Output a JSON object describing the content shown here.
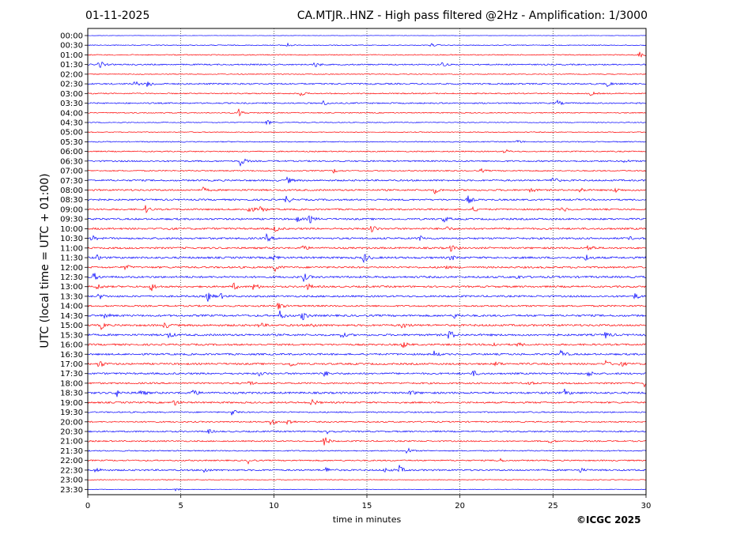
{
  "header": {
    "date": "01-11-2025",
    "title": "CA.MTJR..HNZ - High pass filtered @2Hz - Amplification: 1/3000"
  },
  "footer": {
    "copyright": "©ICGC 2025"
  },
  "chart_data": {
    "type": "line",
    "title": "CA.MTJR..HNZ - High pass filtered @2Hz - Amplification: 1/3000",
    "xlabel": "time in minutes",
    "ylabel": "UTC (local time = UTC + 01:00)",
    "xlim": [
      0,
      30
    ],
    "xticks": [
      0,
      5,
      10,
      15,
      20,
      25,
      30
    ],
    "vertical_gridlines_at": [
      5,
      10,
      15,
      20,
      25
    ],
    "grid": "vertical dotted",
    "trace_colors": [
      "#0000ff",
      "#ff0000"
    ],
    "rows": [
      {
        "label": "00:00",
        "color": "#0000ff",
        "level": 0.2,
        "events": []
      },
      {
        "label": "00:30",
        "color": "#0000ff",
        "level": 0.5,
        "events": [
          [
            10.7,
            3
          ],
          [
            18.4,
            3
          ]
        ]
      },
      {
        "label": "01:00",
        "color": "#ff0000",
        "level": 0.6,
        "events": [
          [
            29.6,
            5
          ]
        ]
      },
      {
        "label": "01:30",
        "color": "#0000ff",
        "level": 0.8,
        "events": [
          [
            0.6,
            6
          ],
          [
            12.2,
            4
          ],
          [
            19.0,
            4
          ]
        ]
      },
      {
        "label": "02:00",
        "color": "#ff0000",
        "level": 0.5,
        "events": []
      },
      {
        "label": "02:30",
        "color": "#0000ff",
        "level": 0.9,
        "events": [
          [
            2.5,
            4
          ],
          [
            3.2,
            6
          ],
          [
            27.9,
            4
          ]
        ]
      },
      {
        "label": "03:00",
        "color": "#ff0000",
        "level": 0.7,
        "events": [
          [
            11.4,
            4
          ],
          [
            27.0,
            3
          ]
        ]
      },
      {
        "label": "03:30",
        "color": "#0000ff",
        "level": 0.8,
        "events": [
          [
            12.6,
            4
          ],
          [
            25.2,
            4
          ]
        ]
      },
      {
        "label": "04:00",
        "color": "#ff0000",
        "level": 0.6,
        "events": [
          [
            8.1,
            6
          ]
        ]
      },
      {
        "label": "04:30",
        "color": "#0000ff",
        "level": 0.5,
        "events": [
          [
            9.6,
            4
          ]
        ]
      },
      {
        "label": "05:00",
        "color": "#ff0000",
        "level": 0.5,
        "events": []
      },
      {
        "label": "05:30",
        "color": "#0000ff",
        "level": 0.6,
        "events": [
          [
            23.0,
            3
          ]
        ]
      },
      {
        "label": "06:00",
        "color": "#ff0000",
        "level": 0.7,
        "events": [
          [
            22.4,
            3
          ]
        ]
      },
      {
        "label": "06:30",
        "color": "#0000ff",
        "level": 0.9,
        "events": [
          [
            8.2,
            7
          ],
          [
            28.8,
            3
          ]
        ]
      },
      {
        "label": "07:00",
        "color": "#ff0000",
        "level": 0.7,
        "events": [
          [
            13.2,
            3
          ],
          [
            21.1,
            3
          ]
        ]
      },
      {
        "label": "07:30",
        "color": "#0000ff",
        "level": 1.0,
        "events": [
          [
            10.7,
            5
          ],
          [
            24.9,
            7
          ]
        ]
      },
      {
        "label": "08:00",
        "color": "#ff0000",
        "level": 1.0,
        "events": [
          [
            6.1,
            5
          ],
          [
            18.6,
            5
          ],
          [
            23.8,
            3
          ],
          [
            26.4,
            4
          ],
          [
            28.3,
            4
          ]
        ]
      },
      {
        "label": "08:30",
        "color": "#0000ff",
        "level": 1.0,
        "events": [
          [
            0.2,
            3
          ],
          [
            10.6,
            7
          ],
          [
            20.4,
            6
          ]
        ]
      },
      {
        "label": "09:00",
        "color": "#ff0000",
        "level": 1.0,
        "events": [
          [
            3.1,
            5
          ],
          [
            8.6,
            7
          ],
          [
            9.3,
            5
          ],
          [
            20.7,
            4
          ],
          [
            25.5,
            4
          ]
        ]
      },
      {
        "label": "09:30",
        "color": "#0000ff",
        "level": 1.1,
        "events": [
          [
            11.2,
            4
          ],
          [
            11.9,
            6
          ],
          [
            19.1,
            5
          ]
        ]
      },
      {
        "label": "10:00",
        "color": "#ff0000",
        "level": 1.1,
        "events": [
          [
            4.2,
            3
          ],
          [
            10.0,
            5
          ],
          [
            15.2,
            7
          ],
          [
            19.2,
            4
          ]
        ]
      },
      {
        "label": "10:30",
        "color": "#0000ff",
        "level": 1.1,
        "events": [
          [
            0.2,
            4
          ],
          [
            9.6,
            5
          ],
          [
            17.8,
            4
          ],
          [
            29.0,
            3
          ]
        ]
      },
      {
        "label": "11:00",
        "color": "#ff0000",
        "level": 1.1,
        "events": [
          [
            11.5,
            5
          ],
          [
            19.5,
            4
          ],
          [
            26.9,
            6
          ]
        ]
      },
      {
        "label": "11:30",
        "color": "#0000ff",
        "level": 1.2,
        "events": [
          [
            0.5,
            3
          ],
          [
            10.0,
            5
          ],
          [
            14.8,
            8
          ],
          [
            19.5,
            4
          ],
          [
            26.7,
            6
          ]
        ]
      },
      {
        "label": "12:00",
        "color": "#ff0000",
        "level": 1.1,
        "events": [
          [
            2.0,
            4
          ],
          [
            10.0,
            6
          ],
          [
            19.1,
            3
          ]
        ]
      },
      {
        "label": "12:30",
        "color": "#0000ff",
        "level": 1.2,
        "events": [
          [
            0.3,
            6
          ],
          [
            11.6,
            5
          ],
          [
            23.0,
            3
          ]
        ]
      },
      {
        "label": "13:00",
        "color": "#ff0000",
        "level": 1.1,
        "events": [
          [
            0.5,
            4
          ],
          [
            3.4,
            6
          ],
          [
            7.8,
            5
          ],
          [
            8.9,
            6
          ],
          [
            11.8,
            4
          ]
        ]
      },
      {
        "label": "13:30",
        "color": "#0000ff",
        "level": 1.1,
        "events": [
          [
            0.6,
            4
          ],
          [
            6.4,
            8
          ],
          [
            7.1,
            4
          ],
          [
            29.4,
            4
          ]
        ]
      },
      {
        "label": "14:00",
        "color": "#ff0000",
        "level": 1.0,
        "events": [
          [
            10.2,
            6
          ]
        ]
      },
      {
        "label": "14:30",
        "color": "#0000ff",
        "level": 1.2,
        "events": [
          [
            0.9,
            4
          ],
          [
            10.3,
            6
          ],
          [
            11.5,
            7
          ],
          [
            19.7,
            4
          ]
        ]
      },
      {
        "label": "15:00",
        "color": "#ff0000",
        "level": 1.2,
        "events": [
          [
            0.7,
            5
          ],
          [
            4.1,
            5
          ],
          [
            9.2,
            4
          ],
          [
            12.0,
            4
          ],
          [
            16.9,
            5
          ]
        ]
      },
      {
        "label": "15:30",
        "color": "#0000ff",
        "level": 1.2,
        "events": [
          [
            4.3,
            5
          ],
          [
            13.6,
            4
          ],
          [
            19.4,
            8
          ],
          [
            27.8,
            5
          ]
        ]
      },
      {
        "label": "16:00",
        "color": "#ff0000",
        "level": 1.1,
        "events": [
          [
            16.9,
            5
          ],
          [
            21.7,
            4
          ],
          [
            23.1,
            3
          ]
        ]
      },
      {
        "label": "16:30",
        "color": "#0000ff",
        "level": 1.1,
        "events": [
          [
            18.6,
            4
          ],
          [
            25.4,
            6
          ]
        ]
      },
      {
        "label": "17:00",
        "color": "#ff0000",
        "level": 1.1,
        "events": [
          [
            0.6,
            6
          ],
          [
            10.9,
            4
          ],
          [
            21.9,
            4
          ],
          [
            27.8,
            5
          ],
          [
            28.6,
            4
          ]
        ]
      },
      {
        "label": "17:30",
        "color": "#0000ff",
        "level": 1.1,
        "events": [
          [
            9.2,
            3
          ],
          [
            12.7,
            4
          ],
          [
            20.7,
            4
          ],
          [
            26.9,
            4
          ]
        ]
      },
      {
        "label": "18:00",
        "color": "#ff0000",
        "level": 1.0,
        "events": [
          [
            8.6,
            4
          ],
          [
            23.6,
            4
          ],
          [
            29.9,
            4
          ]
        ]
      },
      {
        "label": "18:30",
        "color": "#0000ff",
        "level": 1.2,
        "events": [
          [
            1.5,
            6
          ],
          [
            2.8,
            5
          ],
          [
            5.6,
            6
          ],
          [
            17.3,
            4
          ],
          [
            25.6,
            5
          ]
        ]
      },
      {
        "label": "19:00",
        "color": "#ff0000",
        "level": 1.0,
        "events": [
          [
            4.6,
            5
          ],
          [
            12.0,
            7
          ]
        ]
      },
      {
        "label": "19:30",
        "color": "#0000ff",
        "level": 0.8,
        "events": [
          [
            7.7,
            6
          ]
        ]
      },
      {
        "label": "20:00",
        "color": "#ff0000",
        "level": 0.8,
        "events": [
          [
            9.8,
            6
          ],
          [
            10.7,
            6
          ]
        ]
      },
      {
        "label": "20:30",
        "color": "#0000ff",
        "level": 0.9,
        "events": [
          [
            6.4,
            4
          ],
          [
            12.9,
            5
          ]
        ]
      },
      {
        "label": "21:00",
        "color": "#ff0000",
        "level": 0.8,
        "events": [
          [
            12.7,
            8
          ],
          [
            24.8,
            3
          ]
        ]
      },
      {
        "label": "21:30",
        "color": "#0000ff",
        "level": 0.7,
        "events": [
          [
            17.1,
            6
          ]
        ]
      },
      {
        "label": "22:00",
        "color": "#ff0000",
        "level": 0.8,
        "events": [
          [
            8.6,
            4
          ],
          [
            22.0,
            5
          ]
        ]
      },
      {
        "label": "22:30",
        "color": "#0000ff",
        "level": 1.0,
        "events": [
          [
            0.4,
            4
          ],
          [
            6.2,
            4
          ],
          [
            12.8,
            5
          ],
          [
            15.9,
            4
          ],
          [
            16.7,
            7
          ],
          [
            26.4,
            4
          ]
        ]
      },
      {
        "label": "23:00",
        "color": "#ff0000",
        "level": 0.4,
        "events": []
      },
      {
        "label": "23:30",
        "color": "#0000ff",
        "level": 0.3,
        "events": [
          [
            4.7,
            2
          ]
        ]
      }
    ]
  }
}
